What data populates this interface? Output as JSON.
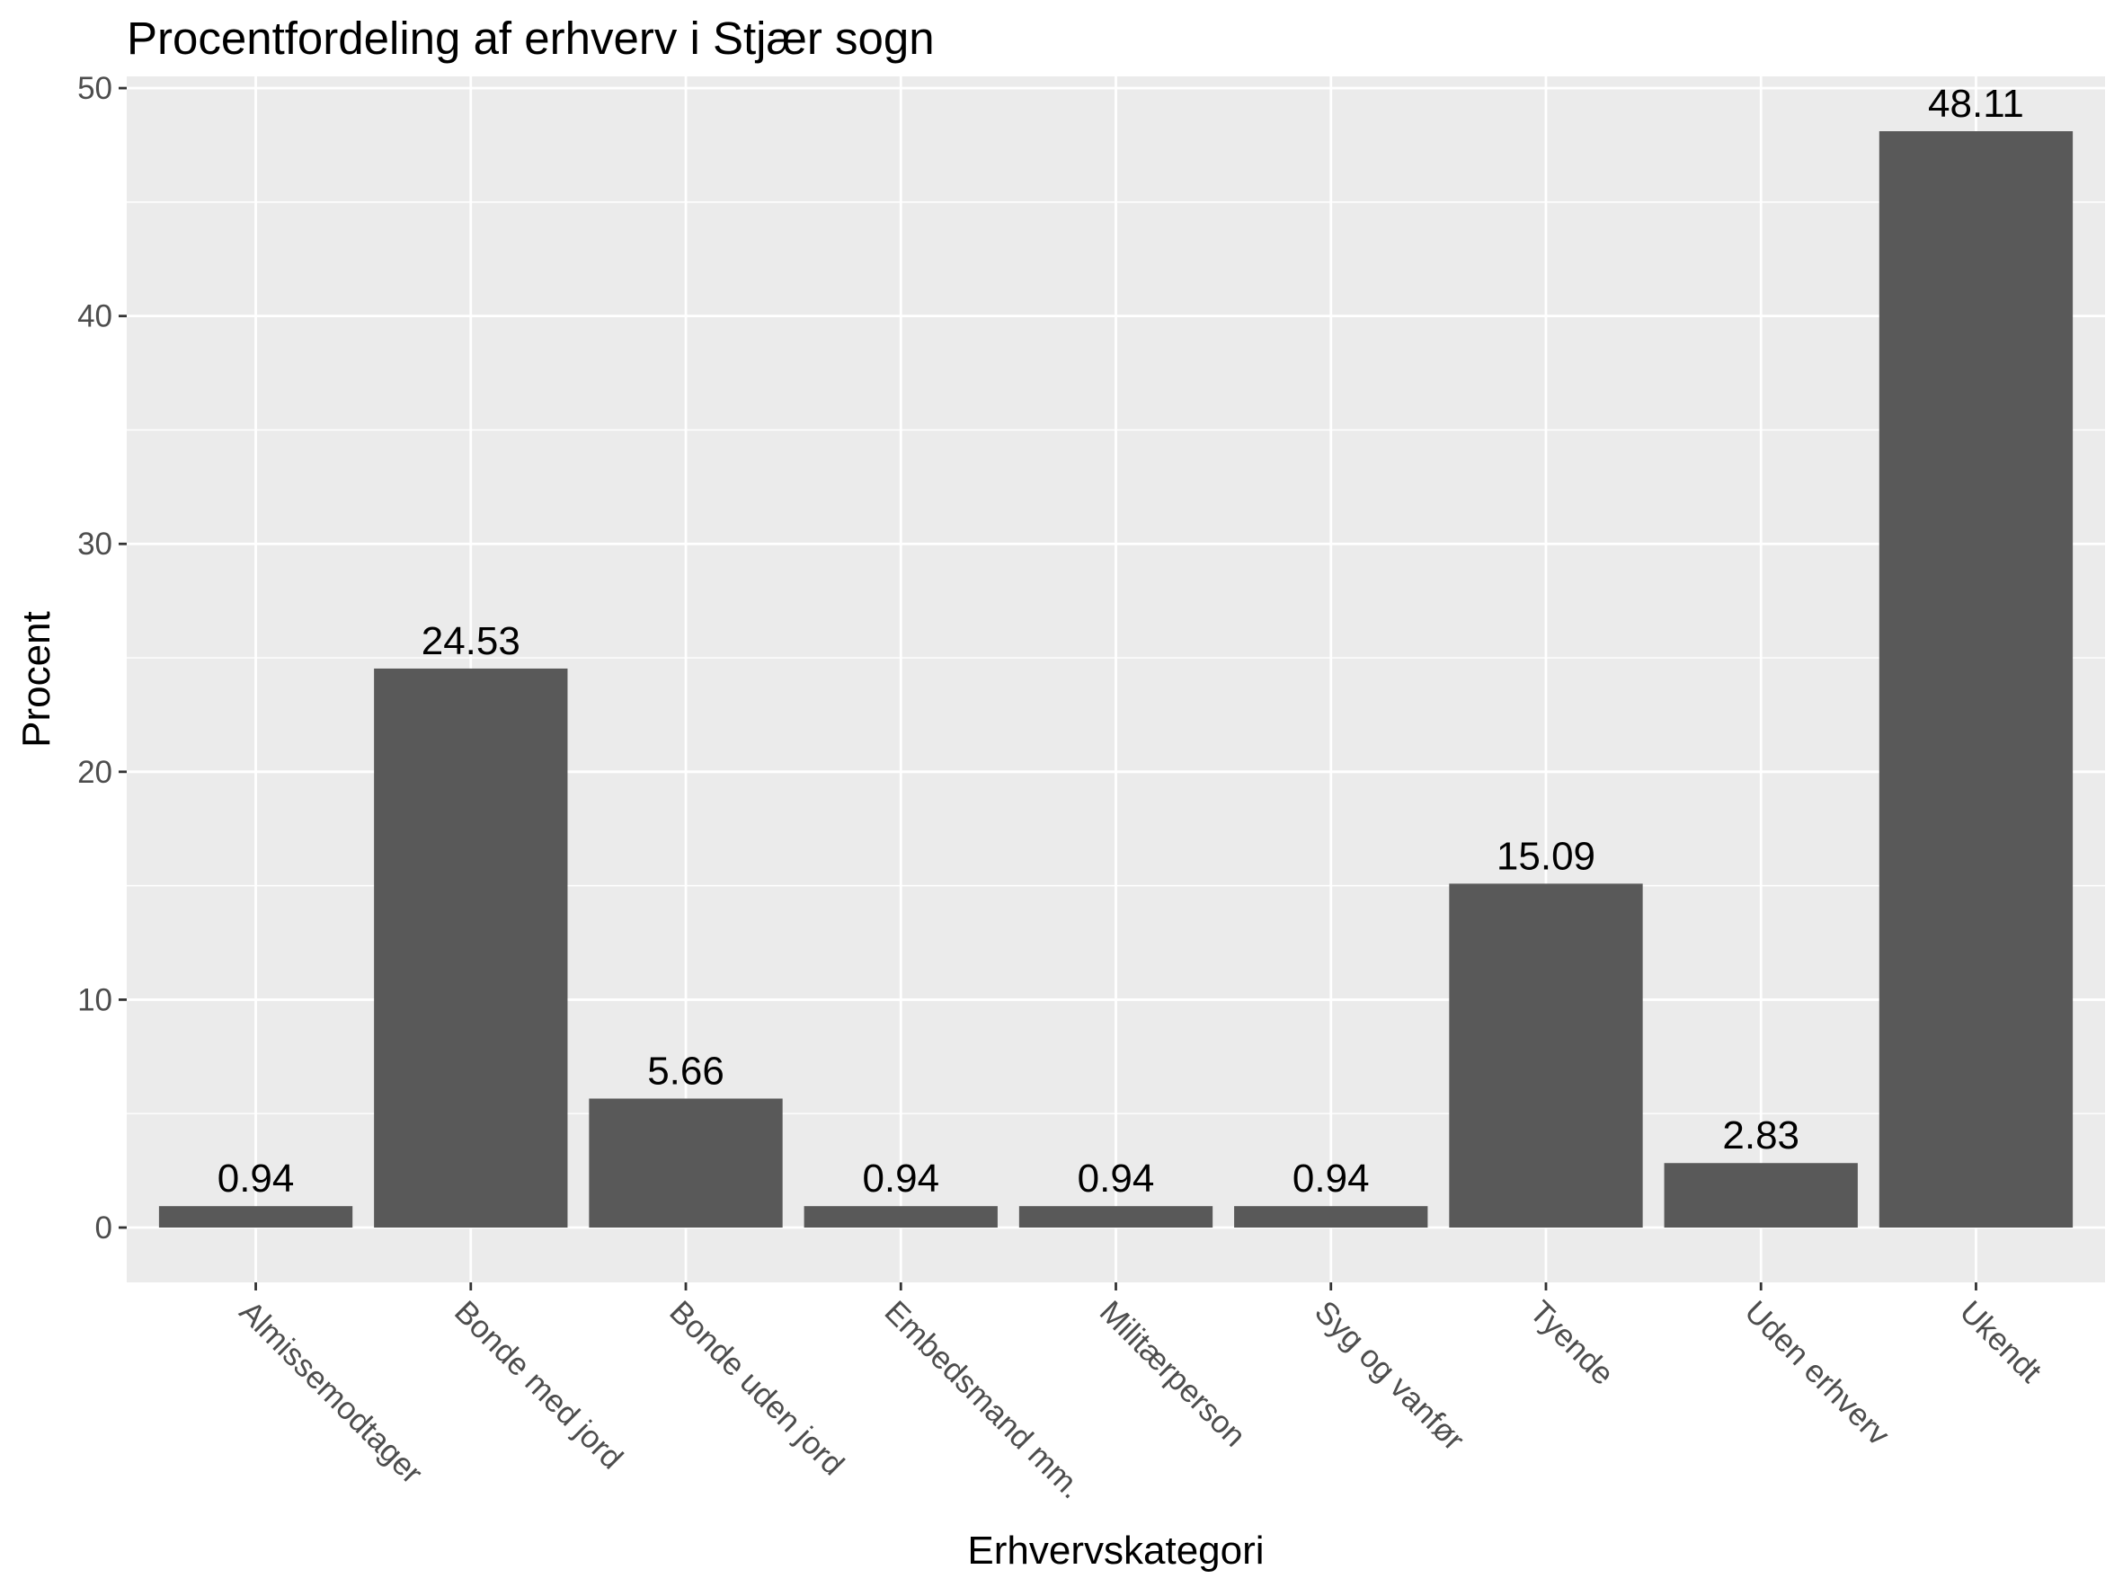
{
  "chart_data": {
    "type": "bar",
    "title": "Procentfordeling af erhverv i Stjær sogn",
    "xlabel": "Erhvervskategori",
    "ylabel": "Procent",
    "categories": [
      "Almissemodtager",
      "Bonde med jord",
      "Bonde uden jord",
      "Embedsmand mm.",
      "Militærperson",
      "Syg og vanfør",
      "Tyende",
      "Uden erhverv",
      "Ukendt"
    ],
    "values": [
      0.94,
      24.53,
      5.66,
      0.94,
      0.94,
      0.94,
      15.09,
      2.83,
      48.11
    ],
    "data_labels": [
      "0.94",
      "24.53",
      "5.66",
      "0.94",
      "0.94",
      "0.94",
      "15.09",
      "2.83",
      "48.11"
    ],
    "yticks": [
      0,
      10,
      20,
      30,
      40,
      50
    ],
    "ylim": [
      -2.4055,
      50.5155
    ],
    "grid": true,
    "colors": {
      "bar": "#595959",
      "panel": "#ebebeb",
      "grid": "#ffffff"
    }
  }
}
